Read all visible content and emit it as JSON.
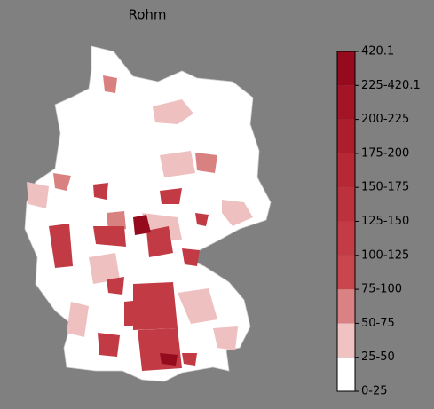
{
  "title": "Rohm",
  "colorbar": {
    "labels": [
      "0-25",
      "25-50",
      "50-75",
      "75-100",
      "100-125",
      "125-150",
      "150-175",
      "175-200",
      "200-225",
      "225-420.1",
      "420.1"
    ],
    "colors": [
      "#ffffff",
      "#f0c2c2",
      "#da8283",
      "#c9464d",
      "#c33c45",
      "#bc323c",
      "#b52834",
      "#ad1e2c",
      "#a31425",
      "#960a1e"
    ]
  }
}
